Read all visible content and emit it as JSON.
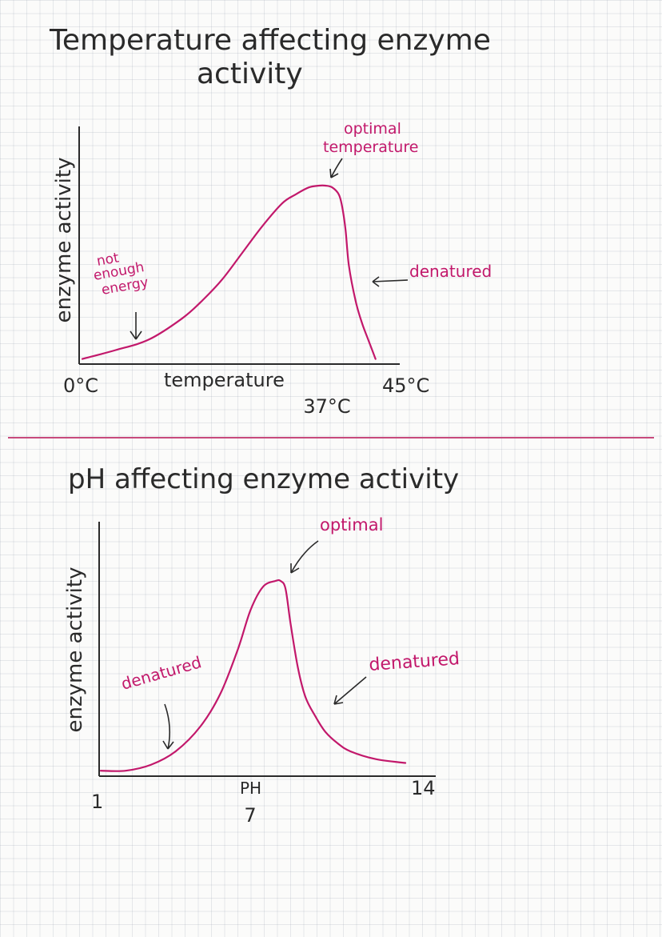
{
  "colors": {
    "ink": "#2a2a2a",
    "accent": "#c2186b",
    "divider": "#c84a7c"
  },
  "chart_data": [
    {
      "type": "line",
      "title_line1": "Temperature affecting enzyme",
      "title_line2": "activity",
      "xlabel": "temperature",
      "ylabel": "enzyme activity",
      "ticks": [
        {
          "x": 0,
          "label": "0°C"
        },
        {
          "x": 37,
          "label": "37°C"
        },
        {
          "x": 45,
          "label": "45°C"
        }
      ],
      "xlim": [
        0,
        45
      ],
      "ylim": [
        0,
        1
      ],
      "x": [
        0,
        5,
        10,
        15,
        18,
        21,
        24,
        27,
        30,
        32,
        34,
        35.5,
        36.5,
        37.5,
        38.5,
        39,
        39.5,
        40,
        41,
        42,
        43,
        44
      ],
      "y": [
        0.02,
        0.07,
        0.13,
        0.25,
        0.35,
        0.47,
        0.62,
        0.77,
        0.9,
        0.95,
        0.99,
        1.0,
        1.0,
        0.99,
        0.95,
        0.88,
        0.75,
        0.55,
        0.35,
        0.22,
        0.12,
        0.02
      ],
      "annotations": {
        "optimal_line1": "optimal",
        "optimal_line2": "temperature",
        "denatured": "denatured",
        "low_line1": "not",
        "low_line2": "enough",
        "low_line3": "energy"
      }
    },
    {
      "type": "line",
      "title": "pH affecting enzyme activity",
      "xlabel": "PH",
      "ylabel": "enzyme activity",
      "ticks": [
        {
          "x": 1,
          "label": "1"
        },
        {
          "x": 7,
          "label": "7"
        },
        {
          "x": 14,
          "label": "14"
        }
      ],
      "xlim": [
        1,
        14
      ],
      "ylim": [
        0,
        1
      ],
      "x": [
        1,
        2,
        3,
        4,
        5,
        5.8,
        6.5,
        7,
        7.5,
        8,
        8.2,
        8.4,
        8.6,
        8.9,
        9.2,
        9.6,
        10,
        10.5,
        11,
        12,
        13.2
      ],
      "y": [
        0.02,
        0.02,
        0.05,
        0.12,
        0.25,
        0.42,
        0.65,
        0.85,
        0.97,
        1.0,
        1.0,
        0.96,
        0.78,
        0.55,
        0.4,
        0.3,
        0.22,
        0.16,
        0.12,
        0.08,
        0.06
      ],
      "annotations": {
        "optimal": "optimal",
        "denatured_left": "denatured",
        "denatured_right": "denatured"
      }
    }
  ]
}
